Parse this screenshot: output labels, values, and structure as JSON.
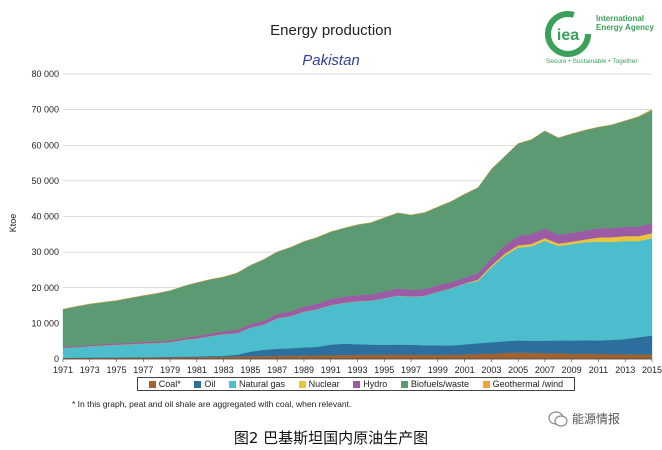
{
  "header": {
    "title": "Energy production",
    "subtitle": "Pakistan"
  },
  "logo": {
    "mark": "iea",
    "name_line1": "International",
    "name_line2": "Energy Agency",
    "tagline": "Secure • Sustainable • Together",
    "color": "#3aa05a"
  },
  "footnote": "* In this graph, peat and oil shale are aggregated with coal, when relevant.",
  "caption": "图2   巴基斯坦国内原油生产图",
  "watermark": "能源情报",
  "chart_data": {
    "type": "area",
    "stacked": true,
    "ylabel": "Ktoe",
    "xlabel": "",
    "ylim": [
      0,
      80000
    ],
    "yticks": [
      0,
      10000,
      20000,
      30000,
      40000,
      50000,
      60000,
      70000,
      80000
    ],
    "ytick_labels": [
      "0",
      "10 000",
      "20 000",
      "30 000",
      "40 000",
      "50 000",
      "60 000",
      "70 000",
      "80 000"
    ],
    "xlim": [
      1971,
      2015
    ],
    "xtick_labels": [
      "1971",
      "1973",
      "1975",
      "1977",
      "1979",
      "1981",
      "1983",
      "1985",
      "1987",
      "1989",
      "1991",
      "1993",
      "1995",
      "1997",
      "1999",
      "2001",
      "2003",
      "2005",
      "2007",
      "2009",
      "2011",
      "2013",
      "2015"
    ],
    "grid": true,
    "legend_position": "bottom",
    "x": [
      1971,
      1972,
      1973,
      1974,
      1975,
      1976,
      1977,
      1978,
      1979,
      1980,
      1981,
      1982,
      1983,
      1984,
      1985,
      1986,
      1987,
      1988,
      1989,
      1990,
      1991,
      1992,
      1993,
      1994,
      1995,
      1996,
      1997,
      1998,
      1999,
      2000,
      2001,
      2002,
      2003,
      2004,
      2005,
      2006,
      2007,
      2008,
      2009,
      2010,
      2011,
      2012,
      2013,
      2014,
      2015
    ],
    "series": [
      {
        "name": "Coal*",
        "color": "#a0622e",
        "values": [
          300,
          320,
          330,
          340,
          350,
          380,
          400,
          420,
          450,
          480,
          500,
          550,
          600,
          700,
          750,
          800,
          850,
          900,
          950,
          1000,
          1050,
          1100,
          1150,
          1150,
          1200,
          1250,
          1200,
          1150,
          1150,
          1200,
          1300,
          1400,
          1500,
          1700,
          1800,
          1700,
          1650,
          1600,
          1500,
          1450,
          1400,
          1350,
          1300,
          1300,
          1300
        ]
      },
      {
        "name": "Oil",
        "color": "#2c6f9e",
        "values": [
          0,
          50,
          100,
          100,
          100,
          100,
          100,
          100,
          200,
          200,
          200,
          300,
          300,
          500,
          1300,
          1800,
          2000,
          2100,
          2300,
          2400,
          3000,
          3200,
          3000,
          2900,
          2800,
          2800,
          2800,
          2700,
          2700,
          2600,
          2800,
          3000,
          3200,
          3300,
          3400,
          3400,
          3500,
          3600,
          3700,
          3800,
          3800,
          4000,
          4300,
          4800,
          5300
        ]
      },
      {
        "name": "Natural gas",
        "color": "#4bbdcc",
        "values": [
          2900,
          2900,
          3100,
          3300,
          3500,
          3600,
          3800,
          3900,
          4000,
          4600,
          5000,
          5500,
          6000,
          6000,
          6700,
          7000,
          8500,
          9000,
          10000,
          10500,
          11000,
          11400,
          12000,
          12300,
          13000,
          13700,
          13500,
          13800,
          15000,
          16000,
          17000,
          17500,
          21000,
          24000,
          26000,
          26500,
          28000,
          26500,
          27000,
          27500,
          27700,
          27500,
          27500,
          27000,
          27300
        ]
      },
      {
        "name": "Nuclear",
        "color": "#e8c53a",
        "values": [
          0,
          0,
          50,
          50,
          50,
          50,
          50,
          50,
          50,
          50,
          50,
          50,
          50,
          50,
          50,
          50,
          50,
          50,
          50,
          50,
          50,
          50,
          50,
          50,
          50,
          50,
          50,
          50,
          50,
          50,
          100,
          400,
          500,
          600,
          700,
          700,
          800,
          700,
          700,
          800,
          1200,
          1300,
          1400,
          1400,
          1400
        ]
      },
      {
        "name": "Hydro",
        "color": "#9b5ba5",
        "values": [
          300,
          300,
          350,
          350,
          400,
          400,
          450,
          450,
          500,
          600,
          700,
          750,
          800,
          900,
          1000,
          1100,
          1200,
          1300,
          1400,
          1600,
          1700,
          1800,
          1700,
          1700,
          1900,
          2000,
          1900,
          1900,
          1800,
          1700,
          1600,
          1800,
          2100,
          2300,
          2600,
          2800,
          2700,
          2500,
          2500,
          2500,
          2600,
          2600,
          2600,
          2700,
          2800
        ]
      },
      {
        "name": "Biofuels/waste",
        "color": "#5b9a72",
        "values": [
          10500,
          11200,
          11500,
          11800,
          12000,
          12600,
          13000,
          13500,
          14000,
          14500,
          15000,
          15200,
          15300,
          16000,
          16500,
          17200,
          17500,
          18000,
          18300,
          18600,
          18900,
          19200,
          19800,
          20200,
          20700,
          21200,
          21000,
          21500,
          22000,
          22700,
          23500,
          24000,
          25000,
          25000,
          26000,
          26500,
          27400,
          27200,
          27800,
          28200,
          28400,
          29000,
          29800,
          30800,
          31800
        ]
      },
      {
        "name": "Geothermal /wind",
        "color": "#f2a33a",
        "values": [
          0,
          0,
          0,
          0,
          0,
          0,
          0,
          0,
          0,
          0,
          0,
          0,
          0,
          0,
          0,
          0,
          0,
          0,
          0,
          0,
          0,
          0,
          0,
          0,
          0,
          0,
          0,
          0,
          0,
          0,
          0,
          0,
          0,
          0,
          0,
          0,
          0,
          0,
          0,
          0,
          0,
          0,
          0,
          100,
          200
        ]
      }
    ]
  }
}
